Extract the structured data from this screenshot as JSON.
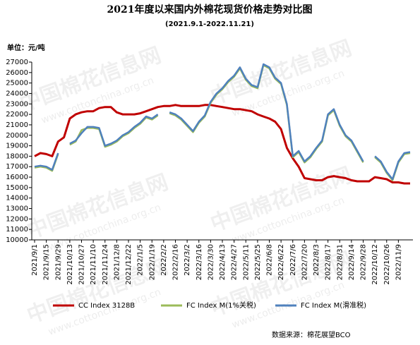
{
  "chart_data": {
    "type": "line",
    "title": "2021年度以来国内外棉花现货价格走势对比图",
    "subtitle": "(2021.9.1-2022.11.21)",
    "unit_label": "单位：元/吨",
    "source": "数据来源：棉花展望BCO",
    "watermark": [
      "中国棉花信息网",
      "www.cottonchina.org.cn"
    ],
    "categories": [
      "2021/9/1",
      null,
      "2021/9/15",
      null,
      "2021/9/29",
      null,
      "2021/10/13",
      null,
      "2021/10/27",
      null,
      "2021/11/10",
      null,
      "2021/11/24",
      null,
      "2021/12/8",
      null,
      "2021/12/22",
      null,
      "2022/1/5",
      null,
      "2022/1/19",
      null,
      "2022/2/2",
      null,
      "2022/2/16",
      null,
      "2022/3/2",
      null,
      "2022/3/16",
      null,
      "2022/3/30",
      null,
      "2022/4/13",
      null,
      "2022/4/27",
      null,
      "2022/5/11",
      null,
      "2022/5/25",
      null,
      "2022/6/8",
      null,
      "2022/6/22",
      null,
      "2022/7/6",
      null,
      "2022/7/20",
      null,
      "2022/8/3",
      null,
      "2022/8/17",
      null,
      "2022/8/31",
      null,
      "2022/9/14",
      null,
      "2022/9/28",
      null,
      "2022/10/12",
      null,
      "2022/10/26",
      null,
      "2022/11/9",
      null,
      null
    ],
    "series": [
      {
        "name": "CC Index 3128B",
        "color": "#c00000",
        "values": [
          18000,
          18300,
          18200,
          18000,
          19400,
          19800,
          21600,
          22000,
          22200,
          22300,
          22300,
          22600,
          22700,
          22700,
          22200,
          22000,
          22000,
          22000,
          22100,
          22300,
          22500,
          22700,
          22800,
          22800,
          22900,
          22800,
          22800,
          22800,
          22800,
          22900,
          22900,
          22800,
          22700,
          22600,
          22500,
          22500,
          22400,
          22300,
          22000,
          21800,
          21600,
          21300,
          20600,
          18800,
          17800,
          17000,
          15900,
          15800,
          15700,
          15700,
          16000,
          16100,
          16000,
          15900,
          15700,
          15600,
          15600,
          15600,
          16000,
          15900,
          15800,
          15500,
          15500,
          15400,
          15400
        ]
      },
      {
        "name": "FC Index M(1%关税)",
        "color": "#9bbb59",
        "values": [
          16900,
          17000,
          16900,
          16600,
          18200,
          null,
          19100,
          19400,
          20500,
          20700,
          20700,
          20600,
          18900,
          19100,
          19400,
          19900,
          20200,
          20700,
          21100,
          21700,
          21500,
          21900,
          null,
          22100,
          21900,
          21500,
          20900,
          20300,
          21200,
          21800,
          23100,
          23900,
          24400,
          25100,
          25600,
          26400,
          25300,
          24700,
          24500,
          26700,
          26400,
          25400,
          24900,
          22900,
          17900,
          18400,
          17400,
          17900,
          18700,
          19400,
          21900,
          22400,
          20900,
          19900,
          19400,
          18400,
          17400,
          null,
          17900,
          17400,
          16400,
          15700,
          17400,
          18200,
          18300
        ]
      },
      {
        "name": "FC Index M(滑准税)",
        "color": "#4f81bd",
        "values": [
          17000,
          17100,
          17000,
          16700,
          18300,
          null,
          19200,
          19500,
          20200,
          20800,
          20800,
          20700,
          19000,
          19200,
          19500,
          20000,
          20300,
          20800,
          21200,
          21800,
          21600,
          22000,
          null,
          22200,
          22000,
          21600,
          21000,
          20400,
          21300,
          21900,
          23200,
          24000,
          24500,
          25200,
          25700,
          26500,
          25400,
          24800,
          24600,
          26800,
          26500,
          25500,
          25000,
          23000,
          18000,
          18500,
          17500,
          18000,
          18800,
          19500,
          22000,
          22500,
          21000,
          20000,
          19500,
          18500,
          17500,
          null,
          18000,
          17500,
          16500,
          15800,
          17500,
          18300,
          18400
        ]
      }
    ],
    "ylim": [
      10000,
      27000
    ],
    "yticks": [
      10000,
      11000,
      12000,
      13000,
      14000,
      15000,
      16000,
      17000,
      18000,
      19000,
      20000,
      21000,
      22000,
      23000,
      24000,
      25000,
      26000,
      27000
    ],
    "grid": false,
    "legend": "bottom"
  }
}
